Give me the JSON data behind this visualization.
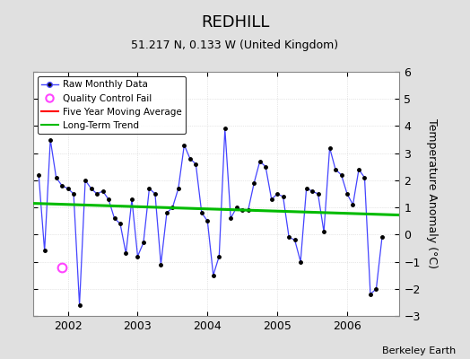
{
  "title": "REDHILL",
  "subtitle": "51.217 N, 0.133 W (United Kingdom)",
  "credit": "Berkeley Earth",
  "ylabel": "Temperature Anomaly (°C)",
  "ylim": [
    -3,
    6
  ],
  "yticks": [
    -3,
    -2,
    -1,
    0,
    1,
    2,
    3,
    4,
    5,
    6
  ],
  "xlim_start": 2001.5,
  "xlim_end": 2006.75,
  "raw_x": [
    2001.583,
    2001.667,
    2001.75,
    2001.833,
    2001.917,
    2002.0,
    2002.083,
    2002.167,
    2002.25,
    2002.333,
    2002.417,
    2002.5,
    2002.583,
    2002.667,
    2002.75,
    2002.833,
    2002.917,
    2003.0,
    2003.083,
    2003.167,
    2003.25,
    2003.333,
    2003.417,
    2003.5,
    2003.583,
    2003.667,
    2003.75,
    2003.833,
    2003.917,
    2004.0,
    2004.083,
    2004.167,
    2004.25,
    2004.333,
    2004.417,
    2004.5,
    2004.583,
    2004.667,
    2004.75,
    2004.833,
    2004.917,
    2005.0,
    2005.083,
    2005.167,
    2005.25,
    2005.333,
    2005.417,
    2005.5,
    2005.583,
    2005.667,
    2005.75,
    2005.833,
    2005.917,
    2006.0,
    2006.083,
    2006.167,
    2006.25,
    2006.333,
    2006.417,
    2006.5
  ],
  "raw_y": [
    2.2,
    -0.6,
    3.5,
    2.1,
    1.8,
    1.7,
    1.5,
    -2.6,
    2.0,
    1.7,
    1.5,
    1.6,
    1.3,
    0.6,
    0.4,
    -0.7,
    1.3,
    -0.8,
    -0.3,
    1.7,
    1.5,
    -1.1,
    0.8,
    1.0,
    1.7,
    3.3,
    2.8,
    2.6,
    0.8,
    0.5,
    -1.5,
    -0.8,
    3.9,
    0.6,
    1.0,
    0.9,
    0.9,
    1.9,
    2.7,
    2.5,
    1.3,
    1.5,
    1.4,
    -0.1,
    -0.2,
    -1.0,
    1.7,
    1.6,
    1.5,
    0.1,
    3.2,
    2.4,
    2.2,
    1.5,
    1.1,
    2.4,
    2.1,
    -2.2,
    -2.0,
    -0.1
  ],
  "qc_fail_x": [
    2001.917
  ],
  "qc_fail_y": [
    -1.2
  ],
  "trend_x": [
    2001.5,
    2006.75
  ],
  "trend_y": [
    1.15,
    0.72
  ],
  "raw_line_color": "#4444ff",
  "dot_color": "#000000",
  "trend_color": "#00bb00",
  "moving_avg_color": "#ff0000",
  "qc_color": "#ff44ff",
  "background_color": "#e0e0e0",
  "plot_bg_color": "#ffffff",
  "grid_color": "#d0d0d0",
  "title_fontsize": 13,
  "subtitle_fontsize": 9,
  "tick_fontsize": 9,
  "ylabel_fontsize": 9
}
